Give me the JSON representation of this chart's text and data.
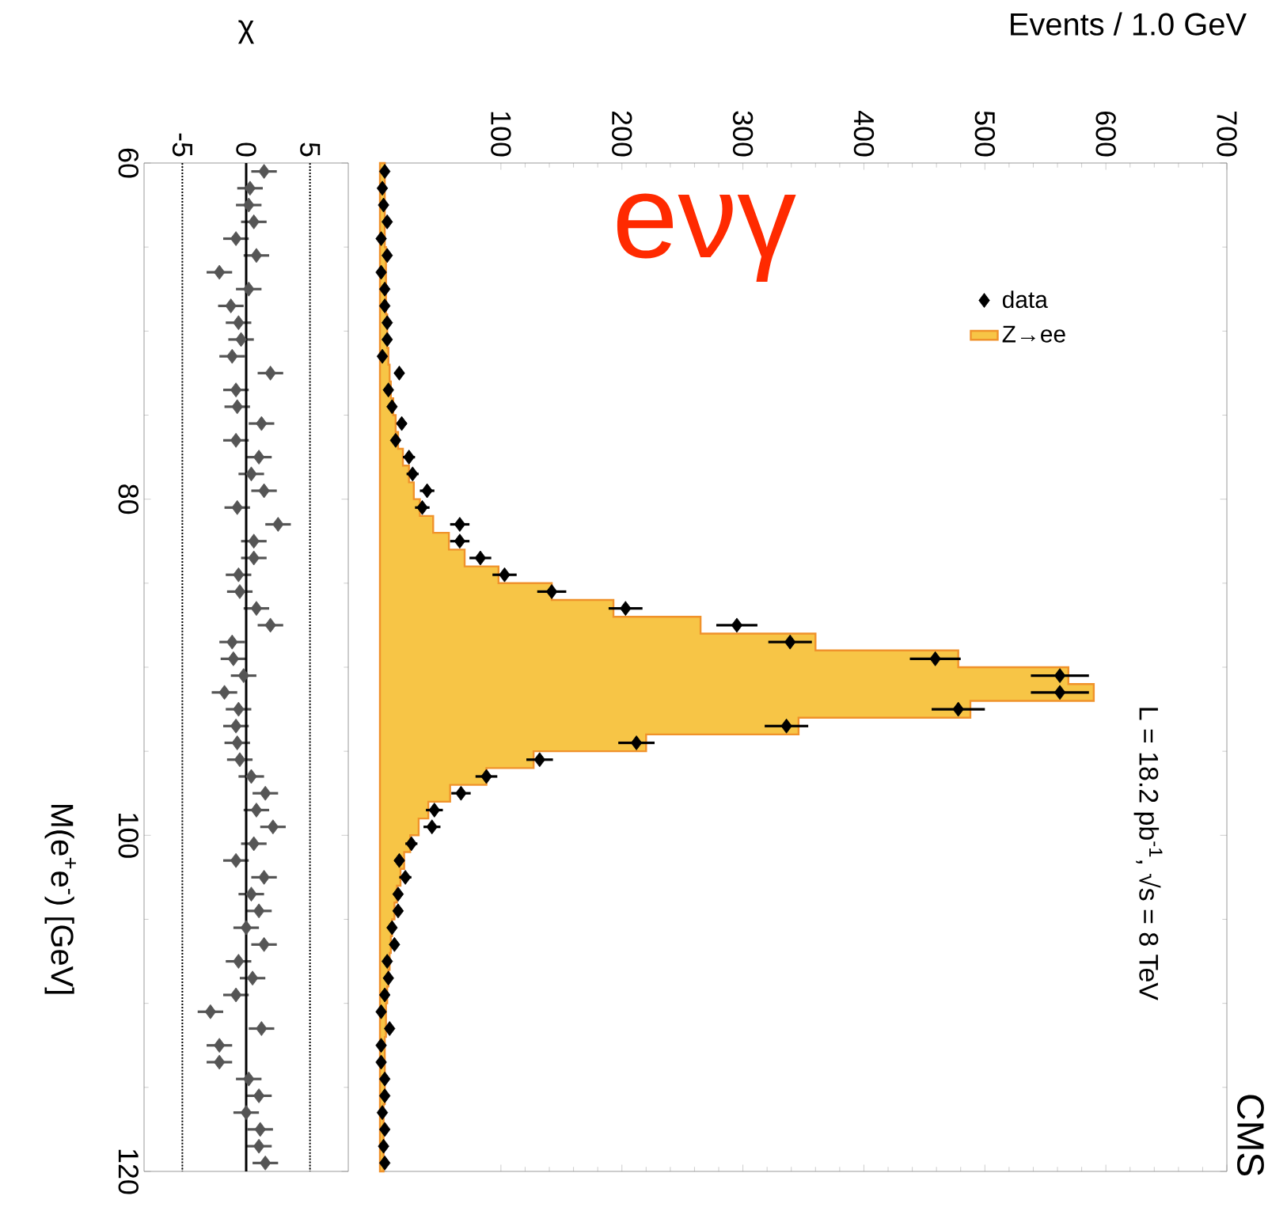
{
  "chart_data": [
    {
      "type": "histogram",
      "orientation": "horizontal",
      "xlabel": "Events / 1.0 GeV",
      "bins": [
        60,
        61,
        62,
        63,
        64,
        65,
        66,
        67,
        68,
        69,
        70,
        71,
        72,
        73,
        74,
        75,
        76,
        77,
        78,
        79,
        80,
        81,
        82,
        83,
        84,
        85,
        86,
        87,
        88,
        89,
        90,
        91,
        92,
        93,
        94,
        95,
        96,
        97,
        98,
        99,
        100,
        101,
        102,
        103,
        104,
        105,
        106,
        107,
        108,
        109,
        110,
        111,
        112,
        113,
        114,
        115,
        116,
        117,
        118,
        119,
        120
      ],
      "series": [
        {
          "name": "Z→ee",
          "type": "histogram",
          "color": "#f7c546",
          "values": [
            4,
            4,
            4,
            4,
            4,
            5,
            5,
            5,
            5,
            6,
            6,
            7,
            8,
            9,
            11,
            13,
            15,
            19,
            24,
            28,
            33,
            44,
            57,
            70,
            98,
            142,
            193,
            265,
            360,
            478,
            569,
            590,
            488,
            346,
            220,
            127,
            88,
            58,
            40,
            32,
            25,
            20,
            17,
            14,
            12,
            10,
            9,
            8,
            7,
            6,
            5,
            5,
            4,
            4,
            4,
            4,
            3,
            3,
            3,
            3
          ]
        },
        {
          "name": "data",
          "type": "scatter",
          "color": "#000000",
          "x": [
            60.5,
            61.5,
            62.5,
            63.5,
            64.5,
            65.5,
            66.5,
            67.5,
            68.5,
            69.5,
            70.5,
            71.5,
            72.5,
            73.5,
            74.5,
            75.5,
            76.5,
            77.5,
            78.5,
            79.5,
            80.5,
            81.5,
            82.5,
            83.5,
            84.5,
            85.5,
            86.5,
            87.5,
            88.5,
            89.5,
            90.5,
            91.5,
            92.5,
            93.5,
            94.5,
            95.5,
            96.5,
            97.5,
            98.5,
            99.5,
            100.5,
            101.5,
            102.5,
            103.5,
            104.5,
            105.5,
            106.5,
            107.5,
            108.5,
            109.5,
            110.5,
            111.5,
            112.5,
            113.5,
            114.5,
            115.5,
            116.5,
            117.5,
            118.5,
            119.5
          ],
          "values": [
            4,
            2,
            3,
            6,
            1,
            6,
            1,
            4,
            4,
            6,
            6,
            2,
            16,
            7,
            10,
            18,
            13,
            24,
            27,
            39,
            35,
            66,
            66,
            83,
            103,
            142,
            203,
            295,
            339,
            459,
            562,
            562,
            478,
            336,
            212,
            132,
            88,
            67,
            45,
            43,
            26,
            16,
            21,
            15,
            15,
            10,
            12,
            6,
            7,
            4,
            1,
            8,
            1,
            1,
            4,
            4,
            2,
            4,
            3,
            4
          ],
          "errors": [
            2,
            1,
            2,
            2,
            1,
            2,
            1,
            2,
            2,
            2,
            2,
            1,
            4,
            3,
            3,
            4,
            4,
            5,
            5,
            6,
            6,
            8,
            8,
            9,
            10,
            12,
            14,
            17,
            18,
            21,
            24,
            24,
            22,
            18,
            15,
            11,
            9,
            8,
            7,
            7,
            5,
            4,
            5,
            4,
            4,
            3,
            3,
            2,
            3,
            2,
            1,
            3,
            1,
            1,
            2,
            2,
            1,
            2,
            2,
            2
          ]
        }
      ],
      "xlim": [
        0,
        700
      ],
      "xticks": [
        100,
        200,
        300,
        400,
        500,
        600,
        700
      ],
      "ylim": [
        120,
        60
      ],
      "yticks": [
        60,
        80,
        100,
        120
      ],
      "tick_labels": "x",
      "legend": "top right",
      "marker": "diamond",
      "annotations": [
        "L = 18.2 pb$^{-1}$, √s = 8 TeV",
        "CMS",
        "eνγ"
      ]
    },
    {
      "type": "scatter",
      "orientation": "horizontal",
      "xlabel": "χ",
      "ylabel": "M(e$^{+}$e$^{-}$) [GeV]",
      "color": "#555555",
      "marker": "diamond",
      "x": [
        60.5,
        61.5,
        62.5,
        63.5,
        64.5,
        65.5,
        66.5,
        67.5,
        68.5,
        69.5,
        70.5,
        71.5,
        72.5,
        73.5,
        74.5,
        75.5,
        76.5,
        77.5,
        78.5,
        79.5,
        80.5,
        81.5,
        82.5,
        83.5,
        84.5,
        85.5,
        86.5,
        87.5,
        88.5,
        89.5,
        90.5,
        91.5,
        92.5,
        93.5,
        94.5,
        95.5,
        96.5,
        97.5,
        98.5,
        99.5,
        100.5,
        101.5,
        102.5,
        103.5,
        104.5,
        105.5,
        106.5,
        107.5,
        108.5,
        109.5,
        110.5,
        111.5,
        112.5,
        113.5,
        114.5,
        115.5,
        116.5,
        117.5,
        118.5,
        119.5
      ],
      "values": [
        1.4,
        0.3,
        0.2,
        0.6,
        -0.8,
        0.8,
        -2.1,
        0.2,
        -1.2,
        -0.6,
        -0.4,
        -1.1,
        1.9,
        -0.8,
        -0.7,
        1.2,
        -0.8,
        1.0,
        0.4,
        1.4,
        -0.7,
        2.5,
        0.6,
        0.6,
        -0.6,
        -0.5,
        0.8,
        1.9,
        -1.1,
        -1.0,
        -0.2,
        -1.7,
        -0.6,
        -0.8,
        -0.7,
        -0.5,
        0.4,
        1.5,
        0.8,
        2.1,
        0.6,
        -0.8,
        1.4,
        0.4,
        1.0,
        0.0,
        1.4,
        -0.6,
        0.5,
        -0.8,
        -2.8,
        1.2,
        -2.1,
        -2.1,
        0.2,
        1.0,
        0.0,
        1.1,
        1.0,
        1.5
      ],
      "errors": [
        1,
        1,
        1,
        1,
        1,
        1,
        1,
        1,
        1,
        1,
        1,
        1,
        1,
        1,
        1,
        1,
        1,
        1,
        1,
        1,
        1,
        1,
        1,
        1,
        1,
        1,
        1,
        1,
        1,
        1,
        1,
        1,
        1,
        1,
        1,
        1,
        1,
        1,
        1,
        1,
        1,
        1,
        1,
        1,
        1,
        1,
        1,
        1,
        1,
        1,
        1,
        1,
        1,
        1,
        1,
        1,
        1,
        1,
        1,
        1
      ],
      "xlim": [
        -8,
        8
      ],
      "xticks": [
        -5,
        0,
        5
      ],
      "ylim": [
        120,
        60
      ],
      "yticks": [
        60,
        80,
        100,
        120
      ],
      "ref_lines": [
        {
          "axis": "x",
          "value": 5,
          "line_style": "dotted"
        },
        {
          "axis": "x",
          "value": 0,
          "line_style": "solid"
        },
        {
          "axis": "x",
          "value": -5,
          "line_style": "dotted"
        }
      ]
    }
  ]
}
